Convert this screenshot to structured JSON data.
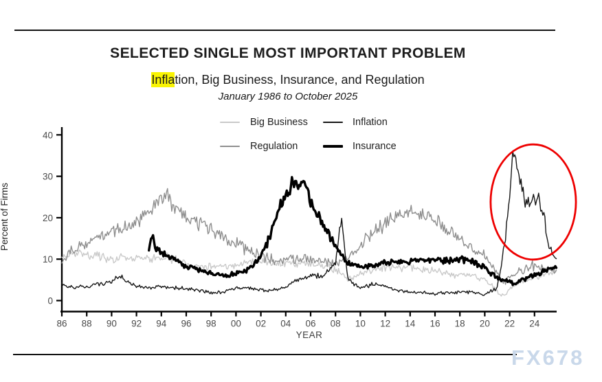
{
  "header": {
    "title": "SELECTED SINGLE MOST IMPORTANT PROBLEM",
    "subtitle_highlight": "Infla",
    "subtitle_rest": "tion, Big Business, Insurance, and Regulation",
    "date_range": "January 1986 to October 2025"
  },
  "watermark": "FX678",
  "chart_data": {
    "type": "line",
    "title": "SELECTED SINGLE MOST IMPORTANT PROBLEM",
    "subtitle": "Inflation, Big Business, Insurance, and Regulation",
    "date_range": "January 1986 to October 2025",
    "xlabel": "YEAR",
    "ylabel": "Percent of Firms",
    "xlim": [
      1986,
      2025.9
    ],
    "ylim": [
      0,
      40
    ],
    "grid": false,
    "legend_position": "top-center",
    "x_ticks": [
      {
        "year": 1986,
        "label": "86"
      },
      {
        "year": 1988,
        "label": "88"
      },
      {
        "year": 1990,
        "label": "90"
      },
      {
        "year": 1992,
        "label": "92"
      },
      {
        "year": 1994,
        "label": "94"
      },
      {
        "year": 1996,
        "label": "96"
      },
      {
        "year": 1998,
        "label": "98"
      },
      {
        "year": 2000,
        "label": "00"
      },
      {
        "year": 2002,
        "label": "02"
      },
      {
        "year": 2004,
        "label": "04"
      },
      {
        "year": 2006,
        "label": "06"
      },
      {
        "year": 2008,
        "label": "08"
      },
      {
        "year": 2010,
        "label": "10"
      },
      {
        "year": 2012,
        "label": "12"
      },
      {
        "year": 2014,
        "label": "14"
      },
      {
        "year": 2016,
        "label": "16"
      },
      {
        "year": 2018,
        "label": "18"
      },
      {
        "year": 2020,
        "label": "20"
      },
      {
        "year": 2022,
        "label": "22"
      },
      {
        "year": 2024,
        "label": "24"
      }
    ],
    "y_ticks": [
      {
        "value": 0,
        "label": "0"
      },
      {
        "value": 10,
        "label": "10"
      },
      {
        "value": 20,
        "label": "20"
      },
      {
        "value": 30,
        "label": "30"
      },
      {
        "value": 40,
        "label": "40"
      }
    ],
    "series": [
      {
        "name": "Big Business",
        "color": "#c9c9c9",
        "line_width": 1.4,
        "noise": 1.2,
        "legend_row": 1,
        "legend_col": 1,
        "points": [
          [
            1986,
            10.5
          ],
          [
            1987,
            11.5
          ],
          [
            1988,
            11
          ],
          [
            1989,
            10.5
          ],
          [
            1990,
            10
          ],
          [
            1991,
            10.5
          ],
          [
            1992,
            10
          ],
          [
            1993,
            10
          ],
          [
            1994,
            10.5
          ],
          [
            1995,
            10
          ],
          [
            1996,
            9
          ],
          [
            1997,
            8.5
          ],
          [
            1998,
            8
          ],
          [
            1999,
            8.5
          ],
          [
            2000,
            8.5
          ],
          [
            2001,
            9
          ],
          [
            2002,
            9.5
          ],
          [
            2003,
            9
          ],
          [
            2004,
            9
          ],
          [
            2005,
            9
          ],
          [
            2006,
            9
          ],
          [
            2007,
            8.5
          ],
          [
            2008,
            7.5
          ],
          [
            2009,
            5
          ],
          [
            2010,
            6.5
          ],
          [
            2011,
            7.5
          ],
          [
            2012,
            8
          ],
          [
            2013,
            8
          ],
          [
            2014,
            8
          ],
          [
            2015,
            7.5
          ],
          [
            2016,
            7
          ],
          [
            2017,
            6.5
          ],
          [
            2018,
            6
          ],
          [
            2019,
            6
          ],
          [
            2020,
            5
          ],
          [
            2020.8,
            3
          ],
          [
            2021.3,
            1.2
          ],
          [
            2021.7,
            1.5
          ],
          [
            2022,
            3
          ],
          [
            2023,
            4.5
          ],
          [
            2024,
            5.5
          ],
          [
            2025,
            6.5
          ],
          [
            2025.75,
            7
          ]
        ]
      },
      {
        "name": "Regulation",
        "color": "#8e8e8e",
        "line_width": 1.4,
        "noise": 1.4,
        "legend_row": 2,
        "legend_col": 1,
        "points": [
          [
            1986,
            10
          ],
          [
            1987,
            12.5
          ],
          [
            1988,
            14
          ],
          [
            1989,
            15.5
          ],
          [
            1990,
            16.5
          ],
          [
            1991,
            17.5
          ],
          [
            1992,
            19
          ],
          [
            1993,
            21
          ],
          [
            1994,
            24.5
          ],
          [
            1994.4,
            26
          ],
          [
            1995,
            22.5
          ],
          [
            1996,
            20.5
          ],
          [
            1997,
            19
          ],
          [
            1998,
            17
          ],
          [
            1999,
            15.5
          ],
          [
            2000,
            14
          ],
          [
            2001,
            12
          ],
          [
            2002,
            10.5
          ],
          [
            2003,
            10
          ],
          [
            2004,
            10
          ],
          [
            2005,
            10
          ],
          [
            2006,
            10
          ],
          [
            2007,
            9.5
          ],
          [
            2008,
            9
          ],
          [
            2009,
            10.5
          ],
          [
            2010,
            13.5
          ],
          [
            2011,
            16.5
          ],
          [
            2012,
            18.5
          ],
          [
            2013,
            20.5
          ],
          [
            2014,
            21.5
          ],
          [
            2015,
            20.5
          ],
          [
            2016,
            19.5
          ],
          [
            2017,
            17
          ],
          [
            2018,
            14.5
          ],
          [
            2019,
            12.5
          ],
          [
            2020,
            11
          ],
          [
            2021,
            6
          ],
          [
            2021.5,
            4.5
          ],
          [
            2022,
            5.5
          ],
          [
            2023,
            7.5
          ],
          [
            2024,
            8.5
          ],
          [
            2025,
            7.5
          ],
          [
            2025.75,
            7
          ]
        ]
      },
      {
        "name": "Inflation",
        "color": "#151515",
        "line_width": 1.4,
        "noise": 1.0,
        "legend_row": 1,
        "legend_col": 2,
        "points": [
          [
            1986,
            4
          ],
          [
            1987,
            3
          ],
          [
            1988,
            3.5
          ],
          [
            1989,
            4
          ],
          [
            1990,
            4.5
          ],
          [
            1990.7,
            6
          ],
          [
            1991,
            5
          ],
          [
            1992,
            3.5
          ],
          [
            1993,
            3
          ],
          [
            1994,
            3.5
          ],
          [
            1995,
            3
          ],
          [
            1996,
            3
          ],
          [
            1997,
            2.5
          ],
          [
            1998,
            2
          ],
          [
            1999,
            2
          ],
          [
            2000,
            3
          ],
          [
            2001,
            3
          ],
          [
            2002,
            2.5
          ],
          [
            2003,
            2.5
          ],
          [
            2004,
            3.5
          ],
          [
            2005,
            5
          ],
          [
            2006,
            6
          ],
          [
            2007,
            6
          ],
          [
            2008,
            9
          ],
          [
            2008.45,
            20
          ],
          [
            2008.7,
            14
          ],
          [
            2009,
            5
          ],
          [
            2010,
            3
          ],
          [
            2011,
            4
          ],
          [
            2012,
            3.5
          ],
          [
            2013,
            2.5
          ],
          [
            2014,
            2
          ],
          [
            2015,
            2
          ],
          [
            2016,
            1.5
          ],
          [
            2017,
            2
          ],
          [
            2018,
            2
          ],
          [
            2019,
            2
          ],
          [
            2020,
            1.5
          ],
          [
            2021,
            3
          ],
          [
            2021.3,
            8
          ],
          [
            2021.6,
            14
          ],
          [
            2021.9,
            22
          ],
          [
            2022.1,
            30
          ],
          [
            2022.25,
            37
          ],
          [
            2022.4,
            33
          ],
          [
            2022.55,
            35
          ],
          [
            2022.7,
            30
          ],
          [
            2022.9,
            28
          ],
          [
            2023.1,
            26
          ],
          [
            2023.3,
            24
          ],
          [
            2023.5,
            25
          ],
          [
            2023.7,
            23
          ],
          [
            2023.9,
            25
          ],
          [
            2024.1,
            23.5
          ],
          [
            2024.3,
            26
          ],
          [
            2024.5,
            22.5
          ],
          [
            2024.7,
            21
          ],
          [
            2024.9,
            18
          ],
          [
            2025.1,
            13
          ],
          [
            2025.3,
            13.5
          ],
          [
            2025.5,
            10.5
          ],
          [
            2025.75,
            9.5
          ]
        ]
      },
      {
        "name": "Insurance",
        "color": "#000000",
        "line_width": 3.4,
        "noise": 0.9,
        "legend_row": 2,
        "legend_col": 2,
        "points": [
          [
            1993,
            13
          ],
          [
            1993.2,
            16
          ],
          [
            1993.5,
            13
          ],
          [
            1994,
            11.5
          ],
          [
            1995,
            10
          ],
          [
            1996,
            8.5
          ],
          [
            1997,
            7.5
          ],
          [
            1998,
            6.5
          ],
          [
            1999,
            6
          ],
          [
            2000,
            6.5
          ],
          [
            2001,
            7.5
          ],
          [
            2002,
            11
          ],
          [
            2002.5,
            14
          ],
          [
            2003,
            18
          ],
          [
            2003.5,
            23
          ],
          [
            2004,
            26
          ],
          [
            2004.5,
            28
          ],
          [
            2005,
            28.5
          ],
          [
            2005.4,
            29
          ],
          [
            2005.7,
            27
          ],
          [
            2006,
            24
          ],
          [
            2006.5,
            21
          ],
          [
            2007,
            18
          ],
          [
            2007.5,
            15.5
          ],
          [
            2008,
            13
          ],
          [
            2008.5,
            11
          ],
          [
            2009,
            9
          ],
          [
            2010,
            8
          ],
          [
            2011,
            8.5
          ],
          [
            2012,
            9
          ],
          [
            2013,
            9.5
          ],
          [
            2014,
            9.5
          ],
          [
            2015,
            10
          ],
          [
            2016,
            10
          ],
          [
            2017,
            9.5
          ],
          [
            2018,
            10
          ],
          [
            2019,
            9.5
          ],
          [
            2020,
            8
          ],
          [
            2021,
            5.5
          ],
          [
            2022,
            4.5
          ],
          [
            2022.5,
            4
          ],
          [
            2023,
            5
          ],
          [
            2024,
            6
          ],
          [
            2025,
            7.5
          ],
          [
            2025.75,
            8
          ]
        ]
      }
    ],
    "annotations": [
      {
        "type": "ellipse",
        "note": "red circle highlighting the 2021-2025 inflation spike",
        "center_year": 2023.9,
        "center_value": 23.8,
        "radius_years": 3.43,
        "radius_values": 13.9,
        "color": "#ee0000",
        "stroke_width": 2.8
      }
    ]
  }
}
